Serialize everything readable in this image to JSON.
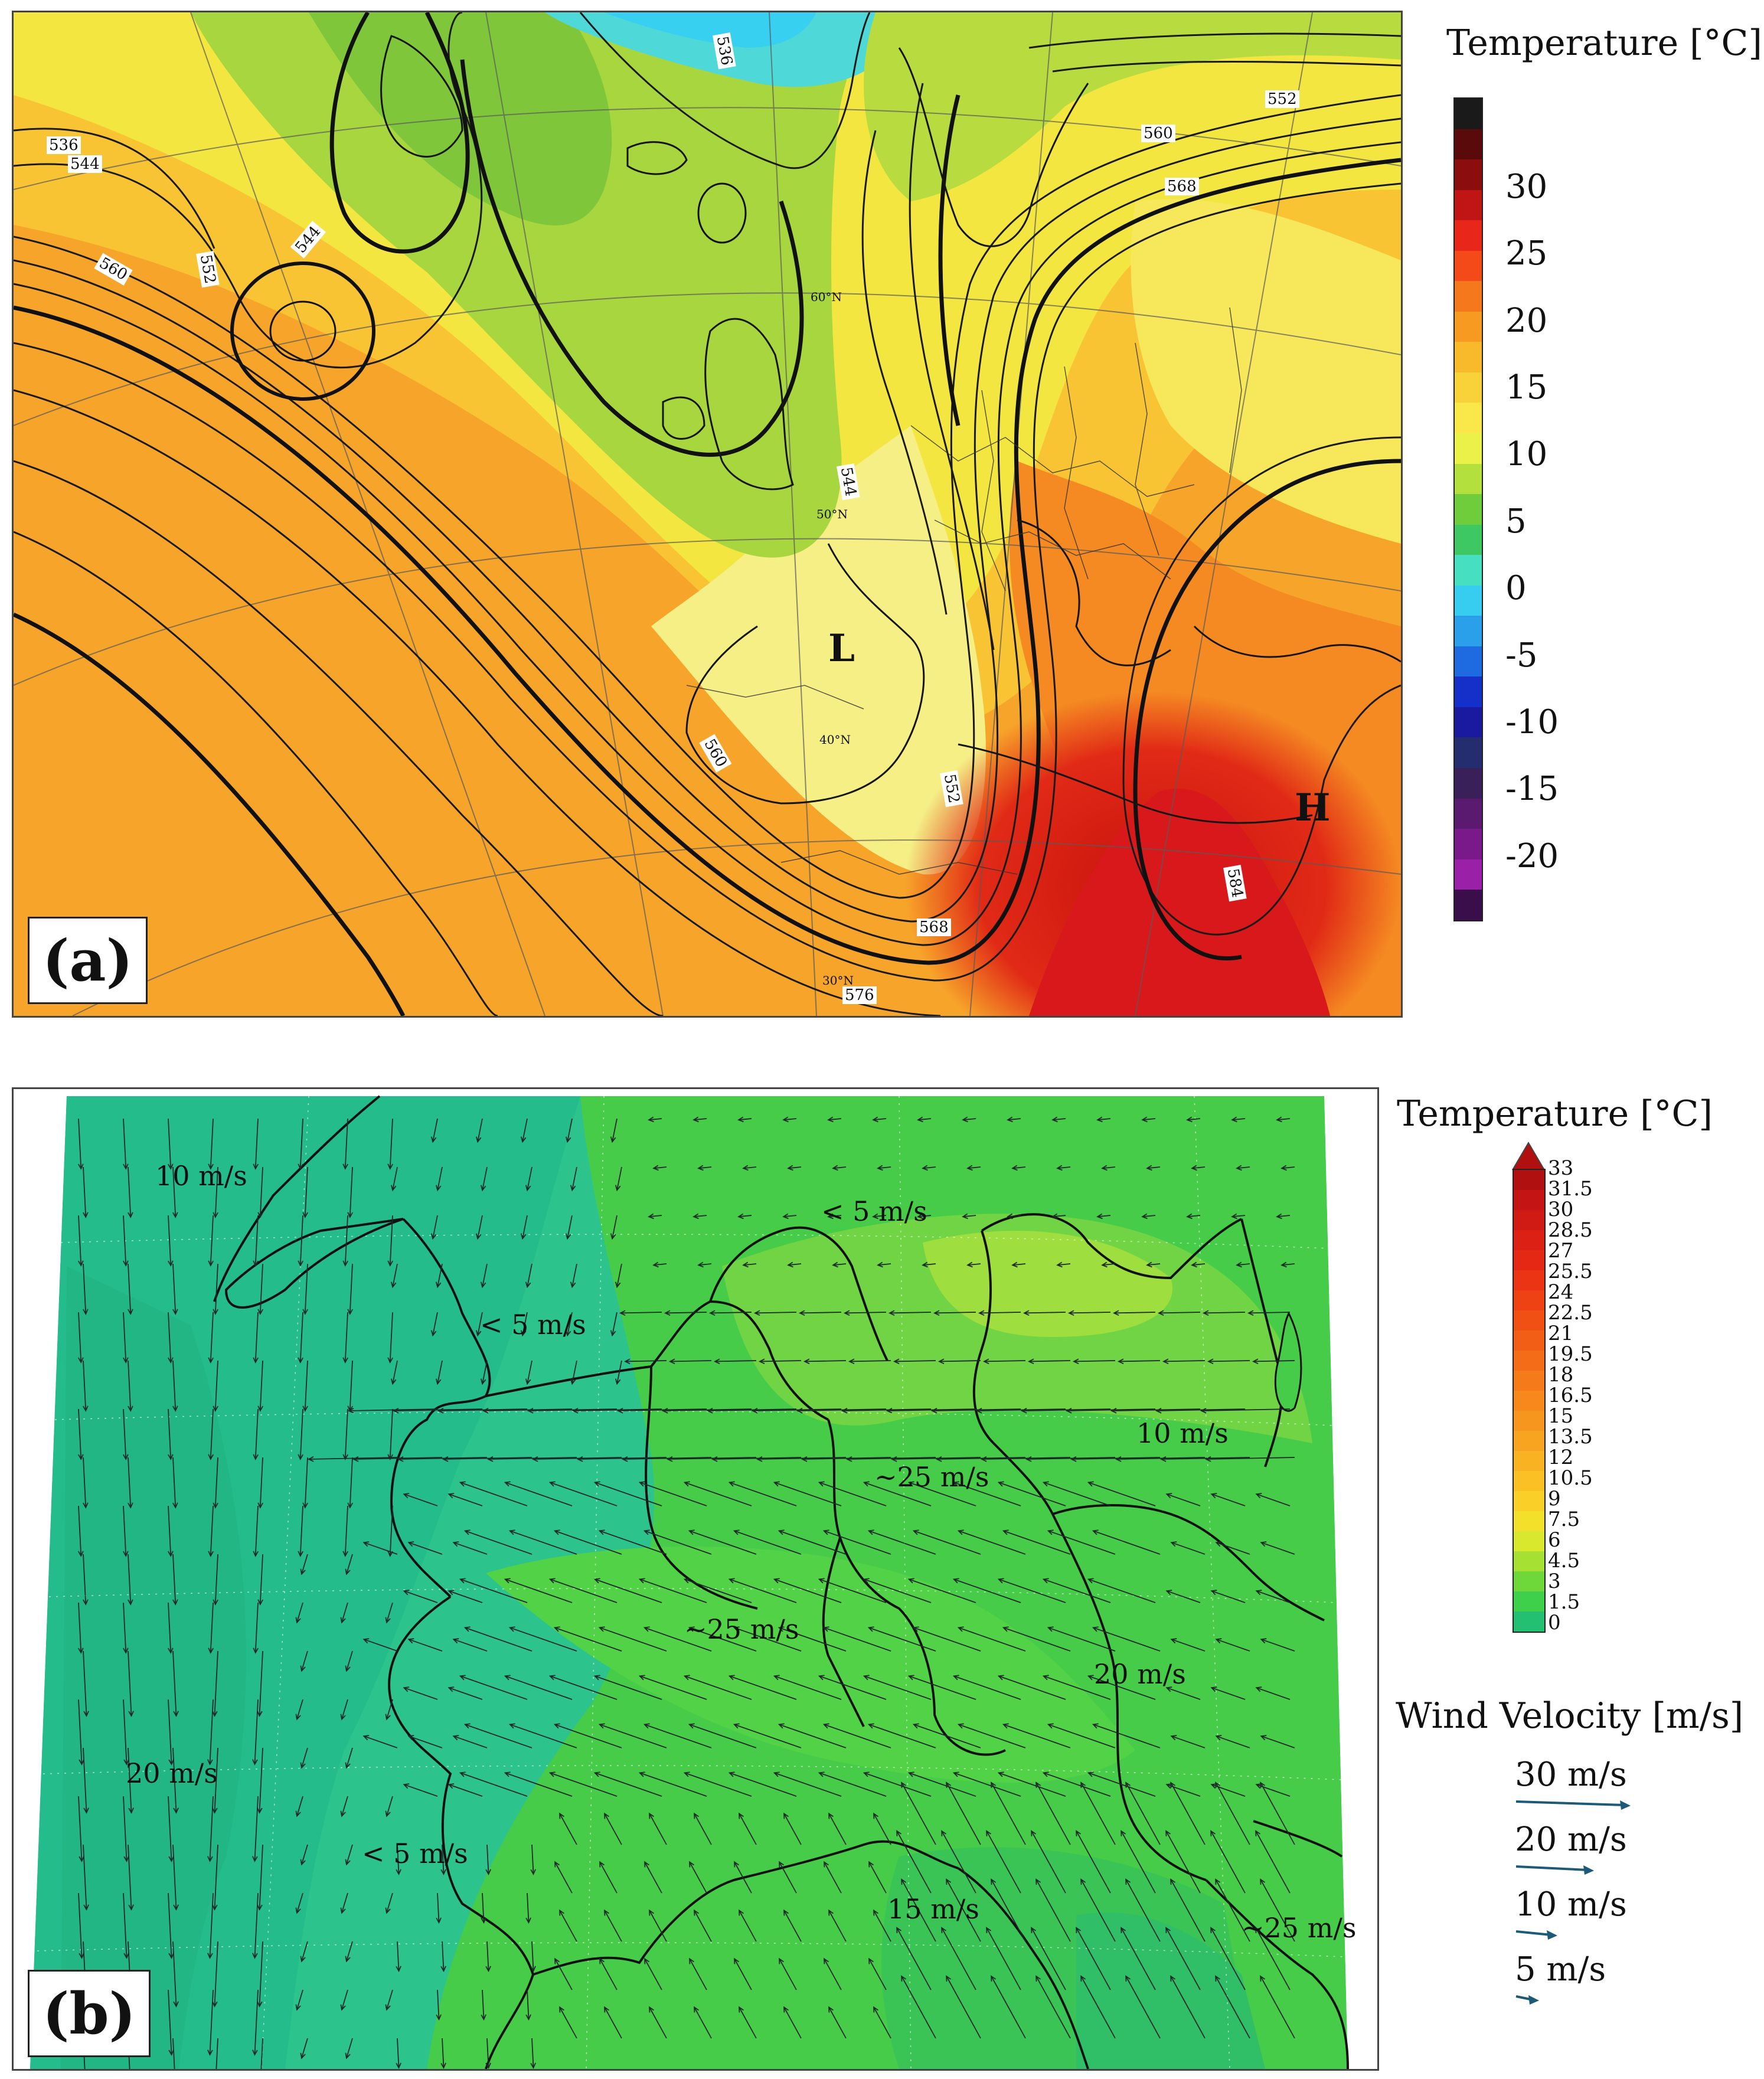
{
  "panel_a": {
    "label": "(a)",
    "legend_title": "Temperature [°C]",
    "colorbar_ticks": [
      "30",
      "25",
      "20",
      "15",
      "10",
      "5",
      "0",
      "-5",
      "-10",
      "-15",
      "-20"
    ],
    "colorbar_colors": [
      "#1a1a1a",
      "#5a0a0a",
      "#8c0d0d",
      "#c01515",
      "#e8261a",
      "#f44a1a",
      "#f5781c",
      "#f79a22",
      "#f8b92a",
      "#f9d23a",
      "#fae84a",
      "#eaf24a",
      "#b3e03c",
      "#6fcc3a",
      "#3ec864",
      "#46e0c0",
      "#36cdf0",
      "#2aa0ea",
      "#1e6ae0",
      "#1430c8",
      "#1a1aa0",
      "#242e6e",
      "#3a2058",
      "#5a1a70",
      "#7a1a8a",
      "#9a20a8",
      "#3a0e4a"
    ],
    "pressure_labels": [
      "L",
      "H"
    ],
    "contour_labels": [
      "536",
      "536",
      "544",
      "544",
      "552",
      "560",
      "560",
      "568",
      "576",
      "584",
      "552",
      "560",
      "568",
      "544",
      "552",
      "560",
      "568",
      "576",
      "584"
    ],
    "latitude_labels": [
      "60°N",
      "50°N",
      "40°N",
      "30°N"
    ]
  },
  "panel_b": {
    "label": "(b)",
    "legend_title": "Temperature [°C]",
    "colorbar_ticks": [
      "33",
      "31.5",
      "30",
      "28.5",
      "27",
      "25.5",
      "24",
      "22.5",
      "21",
      "19.5",
      "18",
      "16.5",
      "15",
      "13.5",
      "12",
      "10.5",
      "9",
      "7.5",
      "6",
      "4.5",
      "3",
      "1.5",
      "0"
    ],
    "colorbar_colors": [
      "#b01010",
      "#c41414",
      "#d01a14",
      "#dc2014",
      "#e42814",
      "#ea3414",
      "#ee4214",
      "#f05014",
      "#f25e16",
      "#f46c18",
      "#f57a1a",
      "#f6881c",
      "#f7961e",
      "#f8a420",
      "#f9b222",
      "#fac024",
      "#fad028",
      "#f2e02a",
      "#d8e82c",
      "#a6e032",
      "#6ed83a",
      "#3ed04a",
      "#22c070"
    ],
    "wind_legend_title": "Wind Velocity [m/s]",
    "wind_legend": [
      {
        "label": "30 m/s",
        "value": 30
      },
      {
        "label": "20 m/s",
        "value": 20
      },
      {
        "label": "10 m/s",
        "value": 10
      },
      {
        "label": "5 m/s",
        "value": 5
      }
    ],
    "annotations": [
      "10 m/s",
      "< 5 m/s",
      "< 5 m/s",
      "10 m/s",
      "~25 m/s",
      "~25 m/s",
      "20 m/s",
      "20 m/s",
      "< 5 m/s",
      "15 m/s",
      "~25 m/s"
    ]
  }
}
